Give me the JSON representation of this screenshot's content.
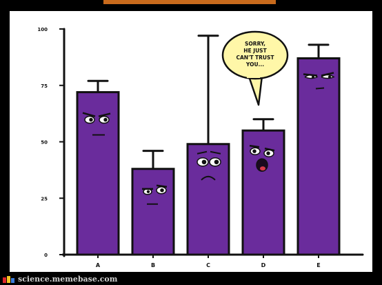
{
  "chart_data": {
    "type": "bar",
    "title": "",
    "xlabel": "",
    "ylabel": "",
    "categories": [
      "A",
      "B",
      "C",
      "D",
      "E"
    ],
    "values": [
      72,
      38,
      49,
      55,
      87
    ],
    "error_upper": [
      77,
      46,
      97,
      60,
      93
    ],
    "ylim": [
      0,
      100
    ],
    "yticks": [
      0,
      25,
      50,
      75,
      100
    ],
    "ytick_labels": [
      "0",
      "25",
      "50",
      "75",
      "100"
    ],
    "bar_color": "#6a2c9c",
    "grid": false,
    "annotations": [
      {
        "type": "speech-bubble",
        "speaker": "D",
        "text": [
          "SORRY,",
          "HE JUST",
          "CAN'T TRUST",
          "YOU..."
        ]
      }
    ],
    "faces": [
      "annoyed",
      "skeptical",
      "worried",
      "shouting",
      "smug"
    ]
  },
  "footer": {
    "site": "science.memebase.com"
  },
  "colors": {
    "background": "#000000",
    "panel": "#ffffff",
    "bar": "#6a2c9c",
    "bubble": "#fff7a8",
    "logo": [
      "#e0262b",
      "#f5c523",
      "#3b7bd9"
    ]
  }
}
